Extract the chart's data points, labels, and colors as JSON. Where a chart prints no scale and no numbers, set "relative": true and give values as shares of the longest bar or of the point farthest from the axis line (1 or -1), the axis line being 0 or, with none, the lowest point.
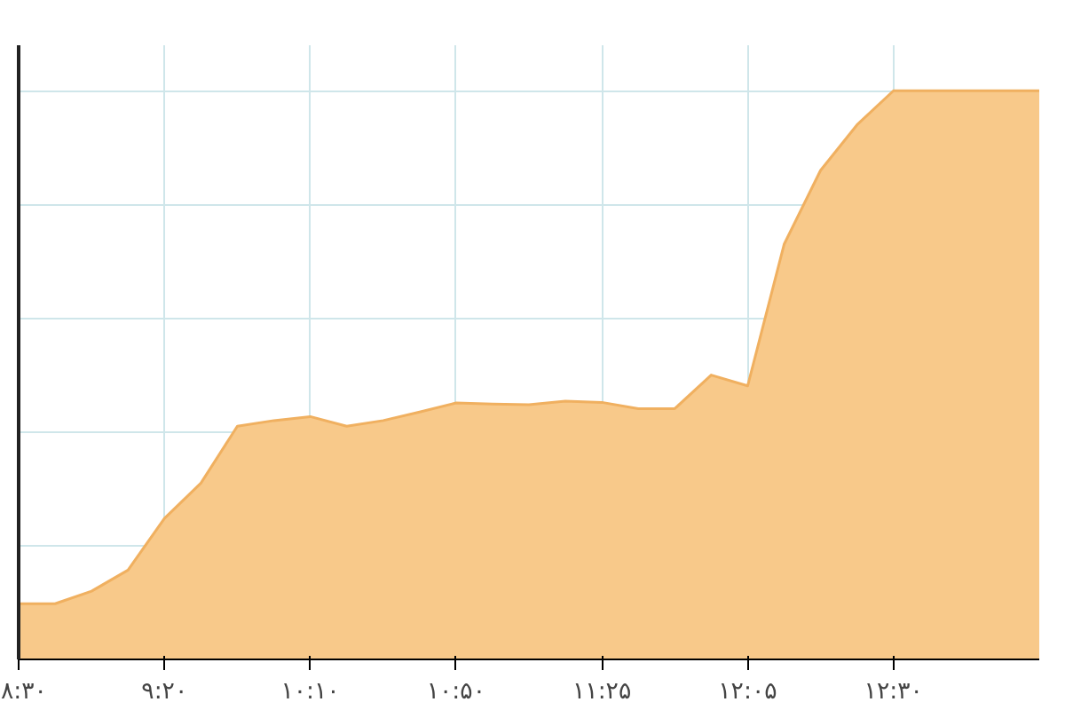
{
  "chart_data": {
    "type": "area",
    "relative": true,
    "grid": true,
    "color": "#f8c98a",
    "categories": [
      "۸:۳۰",
      null,
      null,
      null,
      "۹:۲۰",
      null,
      null,
      null,
      "۱۰:۱۰",
      null,
      null,
      null,
      "۱۰:۵۰",
      null,
      null,
      null,
      "۱۱:۲۵",
      null,
      null,
      null,
      "۱۲:۰۵",
      null,
      null,
      null,
      "۱۲:۳۰",
      null,
      null,
      null,
      null
    ],
    "values": [
      0.098,
      0.098,
      0.12,
      0.157,
      0.248,
      0.31,
      0.41,
      0.42,
      0.427,
      0.41,
      0.42,
      0.435,
      0.451,
      0.449,
      0.448,
      0.454,
      0.452,
      0.441,
      0.441,
      0.5,
      0.481,
      0.73,
      0.86,
      0.94,
      1,
      1,
      1,
      1,
      1
    ]
  }
}
